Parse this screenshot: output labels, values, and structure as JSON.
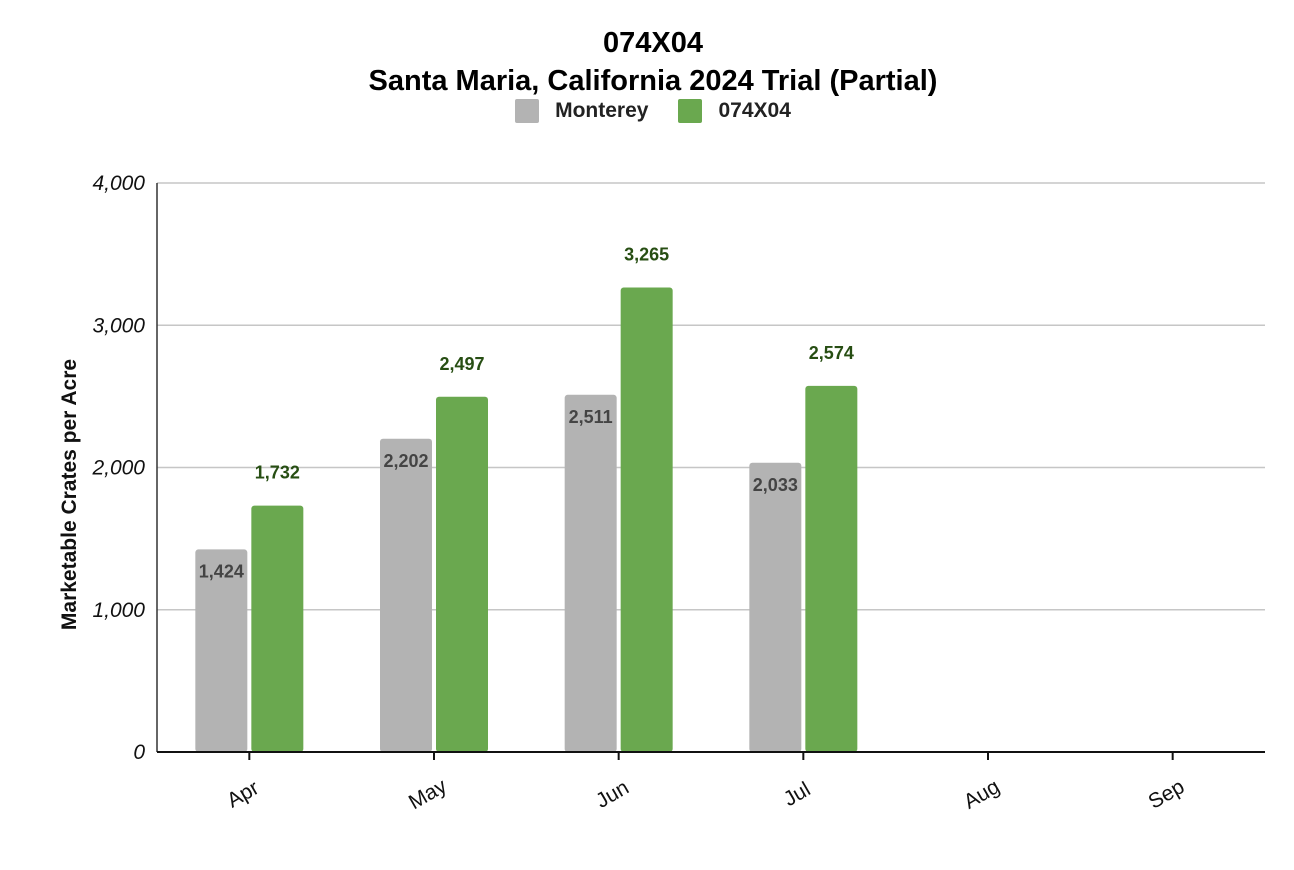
{
  "chart_data": {
    "type": "bar",
    "title": "074X04",
    "subtitle": "Santa Maria, California 2024 Trial (Partial)",
    "xlabel": "",
    "ylabel": "Marketable Crates per Acre",
    "categories": [
      "Apr",
      "May",
      "Jun",
      "Jul",
      "Aug",
      "Sep"
    ],
    "series": [
      {
        "name": "Monterey",
        "color": "#b3b3b3",
        "label_color": "#444444",
        "values": [
          1424,
          2202,
          2511,
          2033,
          null,
          null
        ],
        "labels": [
          "1,424",
          "2,202",
          "2,511",
          "2,033",
          "",
          ""
        ]
      },
      {
        "name": "074X04",
        "color": "#6aa84f",
        "label_color": "#274e13",
        "values": [
          1732,
          2497,
          3265,
          2574,
          null,
          null
        ],
        "labels": [
          "1,732",
          "2,497",
          "3,265",
          "2,574",
          "",
          ""
        ]
      }
    ],
    "ylim": [
      0,
      4000
    ],
    "yticks": [
      0,
      1000,
      2000,
      3000,
      4000
    ],
    "ytick_labels": [
      "0",
      "1,000",
      "2,000",
      "3,000",
      "4,000"
    ],
    "grid": true,
    "legend_position": "top-center"
  }
}
